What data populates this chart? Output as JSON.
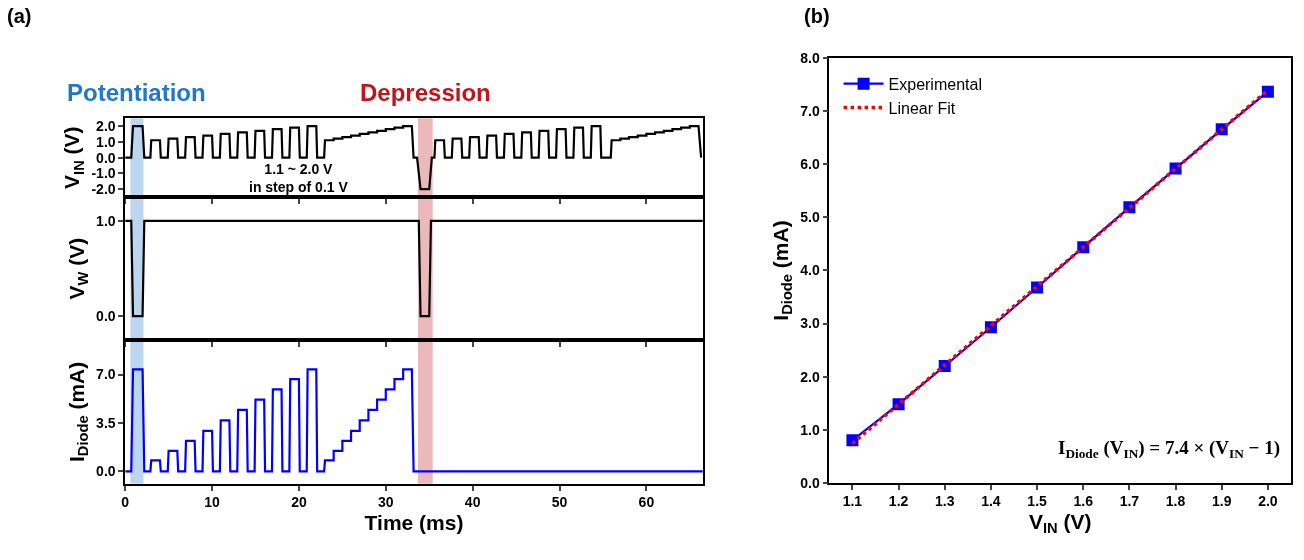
{
  "chart_data": [
    {
      "type": "line",
      "title": "(a)",
      "ylabel": "V$_{IN}$ (V)",
      "xlim": [
        0,
        66.5
      ],
      "ylim": [
        -2.5,
        2.5
      ],
      "xticks": [
        0,
        10,
        20,
        30,
        40,
        50,
        60
      ],
      "yticks": [
        {
          "value": -2,
          "label": "-2.0"
        },
        {
          "value": -1,
          "label": "-1.0"
        },
        {
          "value": 0,
          "label": "0.0"
        },
        {
          "value": 1,
          "label": "1.0"
        },
        {
          "value": 2,
          "label": "2.0"
        }
      ],
      "tick_labels": "y",
      "grid": false,
      "legend": false,
      "bands": [
        {
          "axis": "x",
          "from": 0.6,
          "to": 2.1,
          "label": "Potentiation",
          "color": "#1f78c8"
        },
        {
          "axis": "x",
          "from": 33.7,
          "to": 35.4,
          "label": "Depression",
          "color": "#c0161b"
        }
      ],
      "annotations": [
        "1.1 ~ 2.0 V\nin step of 0.1 V"
      ],
      "series": [
        {
          "color": "#000000",
          "line_style": "solid",
          "marker": "none",
          "x": [
            0,
            0.7,
            0.9,
            2.0,
            2.2,
            2.9,
            3.0,
            4.0,
            4.1,
            4.9,
            5.0,
            6.0,
            6.1,
            6.9,
            7.0,
            8.0,
            8.1,
            8.9,
            9.0,
            10.0,
            10.1,
            10.9,
            11.0,
            12.0,
            12.1,
            12.9,
            13.0,
            14.0,
            14.1,
            14.9,
            15.0,
            16.0,
            16.1,
            16.9,
            17.0,
            18.0,
            18.1,
            18.9,
            19.0,
            20.0,
            20.1,
            20.9,
            21.0,
            22.0,
            22.1,
            22.9,
            23,
            24,
            24,
            25,
            25,
            26,
            26,
            27,
            27,
            28,
            28,
            29,
            29,
            30,
            30,
            31,
            31,
            32,
            32,
            33,
            33.2,
            33.6,
            34.0,
            35.0,
            35.3,
            35.6,
            35.7,
            36.7,
            36.8,
            37.6,
            37.7,
            38.7,
            38.8,
            39.6,
            39.7,
            40.7,
            40.8,
            41.6,
            41.7,
            42.7,
            42.8,
            43.6,
            43.7,
            44.7,
            44.8,
            45.6,
            45.7,
            46.7,
            46.8,
            47.6,
            47.7,
            48.7,
            48.8,
            49.6,
            49.7,
            50.7,
            50.8,
            51.6,
            51.7,
            52.7,
            52.8,
            53.6,
            53.7,
            54.7,
            54.8,
            55.9,
            56,
            57,
            57,
            58,
            58,
            59,
            59,
            60,
            60,
            61,
            61,
            62,
            62,
            63,
            63,
            64,
            64,
            65,
            65,
            66,
            66.3
          ],
          "values": [
            0,
            0,
            2.0,
            2.0,
            0,
            0,
            1.1,
            1.1,
            0,
            0,
            1.2,
            1.2,
            0,
            0,
            1.3,
            1.3,
            0,
            0,
            1.4,
            1.4,
            0,
            0,
            1.5,
            1.5,
            0,
            0,
            1.6,
            1.6,
            0,
            0,
            1.7,
            1.7,
            0,
            0,
            1.8,
            1.8,
            0,
            0,
            1.9,
            1.9,
            0,
            0,
            2.0,
            2.0,
            0,
            0,
            1.1,
            1.1,
            1.2,
            1.2,
            1.3,
            1.3,
            1.4,
            1.4,
            1.5,
            1.5,
            1.6,
            1.6,
            1.7,
            1.7,
            1.8,
            1.8,
            1.9,
            1.9,
            2.0,
            2.0,
            0,
            0,
            -2.0,
            -2.0,
            0,
            0,
            1.1,
            1.1,
            0,
            0,
            1.2,
            1.2,
            0,
            0,
            1.3,
            1.3,
            0,
            0,
            1.4,
            1.4,
            0,
            0,
            1.5,
            1.5,
            0,
            0,
            1.6,
            1.6,
            0,
            0,
            1.7,
            1.7,
            0,
            0,
            1.8,
            1.8,
            0,
            0,
            1.9,
            1.9,
            0,
            0,
            2.0,
            2.0,
            0,
            0,
            1.1,
            1.1,
            1.2,
            1.2,
            1.3,
            1.3,
            1.4,
            1.4,
            1.5,
            1.5,
            1.6,
            1.6,
            1.7,
            1.7,
            1.8,
            1.8,
            1.9,
            1.9,
            2.0,
            2.0,
            0
          ]
        }
      ]
    },
    {
      "type": "line",
      "ylabel": "V$_{W}$ (V)",
      "xlim": [
        0,
        66.5
      ],
      "ylim": [
        -0.25,
        1.25
      ],
      "xticks": [
        0,
        10,
        20,
        30,
        40,
        50,
        60
      ],
      "yticks": [
        {
          "value": 0,
          "label": "0.0"
        },
        {
          "value": 1,
          "label": "1.0"
        }
      ],
      "tick_labels": "y",
      "grid": false,
      "legend": false,
      "bands": [
        {
          "axis": "x",
          "from": 0.6,
          "to": 2.1,
          "color": "#1f78c8"
        },
        {
          "axis": "x",
          "from": 33.7,
          "to": 35.4,
          "color": "#c0161b"
        }
      ],
      "series": [
        {
          "color": "#000000",
          "line_style": "solid",
          "marker": "none",
          "x": [
            0,
            0.7,
            0.9,
            2.0,
            2.2,
            33.8,
            34.0,
            35.0,
            35.2,
            66.5
          ],
          "values": [
            1,
            1,
            0,
            0,
            1,
            1,
            0,
            0,
            1,
            1
          ]
        }
      ]
    },
    {
      "type": "line",
      "ylabel": "I$_{Diode}$ (mA)",
      "xlabel": "Time (ms)",
      "xlim": [
        0,
        66.5
      ],
      "ylim": [
        -0.9,
        9.5
      ],
      "xticks": [
        0,
        10,
        20,
        30,
        40,
        50,
        60
      ],
      "yticks": [
        {
          "value": 0,
          "label": "0.0"
        },
        {
          "value": 3.5,
          "label": "3.5"
        },
        {
          "value": 7,
          "label": "7.0"
        }
      ],
      "grid": false,
      "legend": false,
      "bands": [
        {
          "axis": "x",
          "from": 0.6,
          "to": 2.1,
          "color": "#1f78c8"
        },
        {
          "axis": "x",
          "from": 33.7,
          "to": 35.4,
          "color": "#c0161b"
        }
      ],
      "series": [
        {
          "color": "#0000ff",
          "line_style": "solid",
          "marker": "none",
          "x": [
            0,
            0.7,
            0.9,
            2.0,
            2.2,
            2.9,
            3.0,
            4.0,
            4.1,
            4.9,
            5.0,
            6.0,
            6.1,
            6.9,
            7.0,
            8.0,
            8.1,
            8.9,
            9.0,
            10.0,
            10.1,
            10.9,
            11.0,
            12.0,
            12.1,
            12.9,
            13.0,
            14.0,
            14.1,
            14.9,
            15.0,
            16.0,
            16.1,
            16.9,
            17.0,
            18.0,
            18.1,
            18.9,
            19.0,
            20.0,
            20.1,
            20.9,
            21.0,
            22.0,
            22.1,
            22.9,
            23,
            24,
            24,
            25,
            25,
            26,
            26,
            27,
            27,
            28,
            28,
            29,
            29,
            30,
            30,
            31,
            31,
            32,
            32,
            33,
            33.2,
            66.5
          ],
          "values": [
            0,
            0,
            7.37,
            7.37,
            0,
            0,
            0.8,
            0.8,
            0,
            0,
            1.48,
            1.48,
            0,
            0,
            2.2,
            2.2,
            0,
            0,
            2.93,
            2.93,
            0,
            0,
            3.68,
            3.68,
            0,
            0,
            4.44,
            4.44,
            0,
            0,
            5.19,
            5.19,
            0,
            0,
            5.92,
            5.92,
            0,
            0,
            6.66,
            6.66,
            0,
            0,
            7.37,
            7.37,
            0,
            0,
            0.8,
            0.8,
            1.48,
            1.48,
            2.2,
            2.2,
            2.93,
            2.93,
            3.68,
            3.68,
            4.44,
            4.44,
            5.19,
            5.19,
            5.92,
            5.92,
            6.66,
            6.66,
            7.37,
            7.37,
            0,
            0
          ]
        }
      ]
    },
    {
      "type": "line",
      "title": "(b)",
      "xlabel": "V$_{IN}$ (V)",
      "ylabel": "I$_{Diode}$ (mA)",
      "xlim": [
        1.05,
        2.05
      ],
      "ylim": [
        0,
        8
      ],
      "xticks": [
        1.1,
        1.2,
        1.3,
        1.4,
        1.5,
        1.6,
        1.7,
        1.8,
        1.9,
        {
          "value": 2.0,
          "label": "2.0"
        }
      ],
      "yticks": [
        {
          "value": 0,
          "label": "0.0"
        },
        {
          "value": 1,
          "label": "1.0"
        },
        {
          "value": 2,
          "label": "2.0"
        },
        {
          "value": 3,
          "label": "3.0"
        },
        {
          "value": 4,
          "label": "4.0"
        },
        {
          "value": 5,
          "label": "5.0"
        },
        {
          "value": 6,
          "label": "6.0"
        },
        {
          "value": 7,
          "label": "7.0"
        },
        {
          "value": 8,
          "label": "8.0"
        }
      ],
      "grid": false,
      "legend": "top left",
      "annotations": [
        "I$_{Diode}$ (V$_{IN}$) = 7.4 × (V$_{IN}$ − 1)"
      ],
      "series": [
        {
          "name": "Experimental",
          "color": "#0000ff",
          "line_style": "solid",
          "marker": "square",
          "x": [
            1.1,
            1.2,
            1.3,
            1.4,
            1.5,
            1.6,
            1.7,
            1.8,
            1.9,
            2.0
          ],
          "values": [
            0.8,
            1.48,
            2.2,
            2.93,
            3.68,
            4.44,
            5.19,
            5.92,
            6.66,
            7.37
          ]
        },
        {
          "name": "Linear Fit",
          "color": "#ff0000",
          "line_style": "dotted",
          "marker": "none",
          "x": [
            1.1,
            2.0
          ],
          "values": [
            0.74,
            7.4
          ]
        }
      ]
    }
  ]
}
